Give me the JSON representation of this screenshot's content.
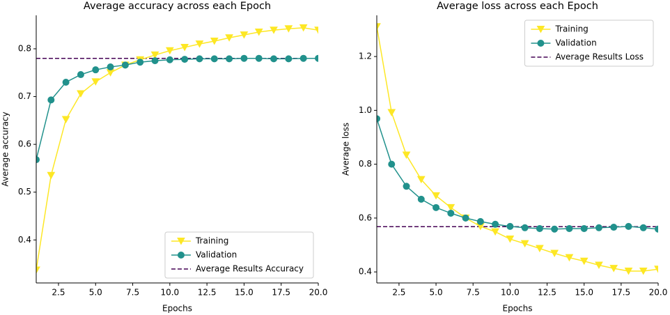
{
  "chart_data": [
    {
      "type": "line",
      "title": "Average accuracy across each Epoch",
      "xlabel": "Epochs",
      "ylabel": "Average accuracy",
      "x": [
        1,
        2,
        3,
        4,
        5,
        6,
        7,
        8,
        9,
        10,
        11,
        12,
        13,
        14,
        15,
        16,
        17,
        18,
        19,
        20
      ],
      "series": [
        {
          "name": "Training",
          "color": "#fde725",
          "marker": "triangle-down",
          "values": [
            0.337,
            0.535,
            0.652,
            0.706,
            0.731,
            0.75,
            0.766,
            0.777,
            0.787,
            0.796,
            0.803,
            0.81,
            0.816,
            0.823,
            0.829,
            0.835,
            0.839,
            0.842,
            0.844,
            0.839
          ]
        },
        {
          "name": "Validation",
          "color": "#21918c",
          "marker": "circle",
          "values": [
            0.568,
            0.693,
            0.73,
            0.746,
            0.756,
            0.762,
            0.766,
            0.772,
            0.775,
            0.777,
            0.778,
            0.779,
            0.779,
            0.779,
            0.78,
            0.78,
            0.779,
            0.779,
            0.78,
            0.78
          ]
        }
      ],
      "hline": {
        "name": "Average Results Accuracy",
        "value": 0.78,
        "color": "#440154"
      },
      "xlim": [
        1,
        20
      ],
      "ylim": [
        0.31,
        0.87
      ],
      "xticks": [
        2.5,
        {
          "value": 5,
          "label": "5.0"
        },
        7.5,
        {
          "value": 10,
          "label": "10.0"
        },
        12.5,
        {
          "value": 15,
          "label": "15.0"
        },
        17.5,
        {
          "value": 20,
          "label": "20.0"
        }
      ],
      "yticks": [
        0.4,
        0.5,
        0.6,
        0.7,
        0.8
      ],
      "legend": "lower right"
    },
    {
      "type": "line",
      "title": "Average loss across each Epoch",
      "xlabel": "Epochs",
      "ylabel": "Average loss",
      "x": [
        1,
        2,
        3,
        4,
        5,
        6,
        7,
        8,
        9,
        10,
        11,
        12,
        13,
        14,
        15,
        16,
        17,
        18,
        19,
        20
      ],
      "series": [
        {
          "name": "Training",
          "color": "#fde725",
          "marker": "triangle-down",
          "values": [
            1.311,
            0.992,
            0.834,
            0.743,
            0.683,
            0.639,
            0.6,
            0.569,
            0.549,
            0.522,
            0.505,
            0.487,
            0.469,
            0.453,
            0.44,
            0.425,
            0.413,
            0.403,
            0.403,
            0.41
          ]
        },
        {
          "name": "Validation",
          "color": "#21918c",
          "marker": "circle",
          "values": [
            0.969,
            0.8,
            0.718,
            0.67,
            0.639,
            0.618,
            0.6,
            0.587,
            0.577,
            0.569,
            0.564,
            0.561,
            0.559,
            0.561,
            0.561,
            0.564,
            0.566,
            0.569,
            0.564,
            0.559
          ]
        }
      ],
      "hline": {
        "name": "Average Results Loss",
        "value": 0.568,
        "color": "#440154"
      },
      "xlim": [
        1,
        20
      ],
      "ylim": [
        0.359,
        1.353
      ],
      "xticks": [
        2.5,
        {
          "value": 5,
          "label": "5.0"
        },
        7.5,
        {
          "value": 10,
          "label": "10.0"
        },
        12.5,
        {
          "value": 15,
          "label": "15.0"
        },
        17.5,
        {
          "value": 20,
          "label": "20.0"
        }
      ],
      "yticks": [
        0.4,
        0.6,
        0.8,
        {
          "value": 1,
          "label": "1.0"
        },
        1.2
      ],
      "legend": "upper right"
    }
  ]
}
